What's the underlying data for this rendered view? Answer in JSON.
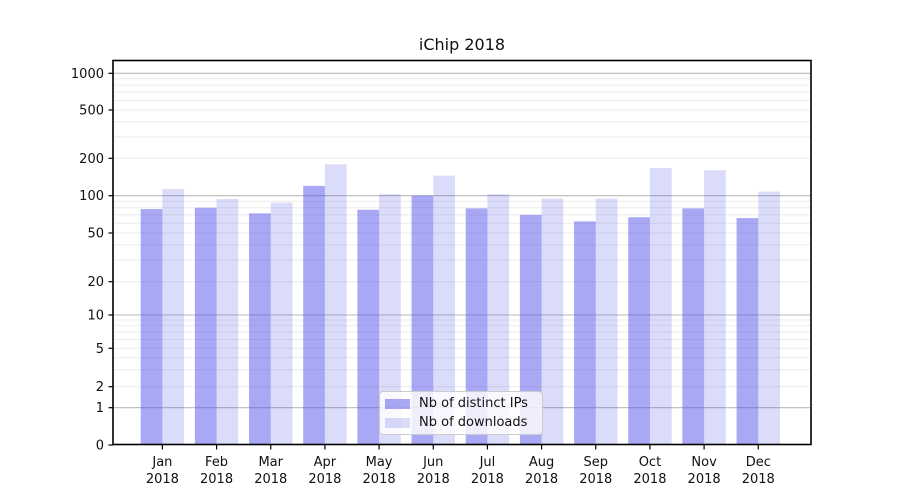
{
  "chart_data": {
    "type": "bar",
    "title": "iChip 2018",
    "x_year": "2018",
    "categories": [
      "Jan",
      "Feb",
      "Mar",
      "Apr",
      "May",
      "Jun",
      "Jul",
      "Aug",
      "Sep",
      "Oct",
      "Nov",
      "Dec"
    ],
    "series": [
      {
        "name": "Nb of distinct IPs",
        "color_fill": "rgba(81,81,233,0.5)",
        "color_hex": "#a8a8f4",
        "values": [
          78,
          80,
          72,
          120,
          77,
          100,
          79,
          70,
          62,
          67,
          79,
          66
        ]
      },
      {
        "name": "Nb of downloads",
        "color_fill": "rgba(75,75,230,0.2)",
        "color_hex": "#dbdbfa",
        "values": [
          113,
          94,
          88,
          179,
          103,
          145,
          103,
          95,
          95,
          167,
          160,
          108
        ]
      }
    ],
    "yaxis": {
      "scale": "symlog",
      "tick_labels": [
        "0",
        "1",
        "2",
        "5",
        "10",
        "20",
        "50",
        "100",
        "200",
        "500",
        "1000"
      ],
      "tick_values": [
        0,
        1,
        2,
        5,
        10,
        20,
        50,
        100,
        200,
        500,
        1000
      ]
    },
    "grid": true,
    "legend_position": "lower center",
    "colors": {
      "major_gridline": "#b9b9b9",
      "minor_gridline": "#ebebeb",
      "axis": "#000000",
      "text": "#111111"
    }
  }
}
